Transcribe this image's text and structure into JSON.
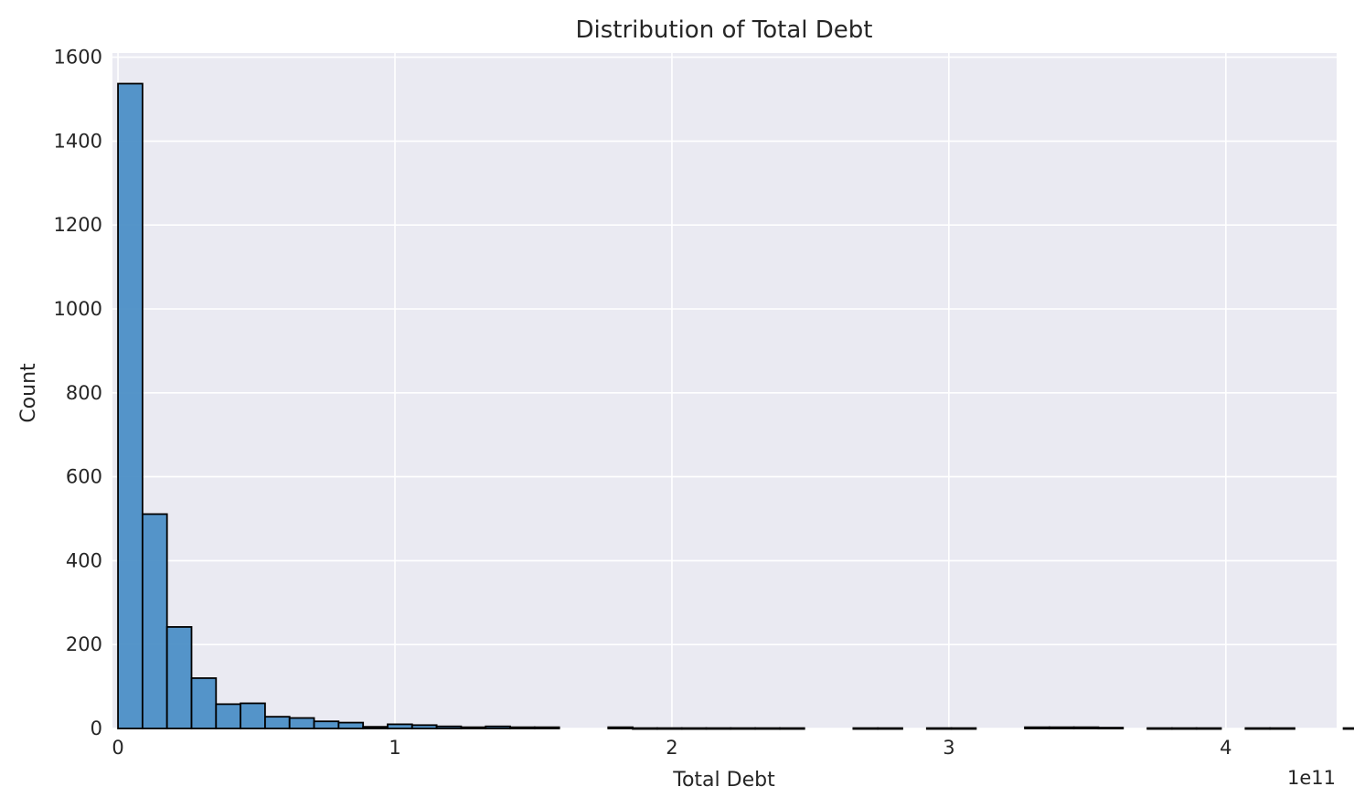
{
  "chart_data": {
    "type": "bar",
    "title": "Distribution of Total Debt",
    "xlabel": "Total Debt",
    "ylabel": "Count",
    "x_offset_text": "1e11",
    "x_scale": 100000000000,
    "xlim": [
      -0.02,
      4.4
    ],
    "ylim": [
      0,
      1610
    ],
    "x_ticks": [
      0,
      1,
      2,
      3,
      4
    ],
    "y_ticks": [
      0,
      200,
      400,
      600,
      800,
      1000,
      1200,
      1400,
      1600
    ],
    "bin_start": 0,
    "bin_width": 0.0885,
    "values": [
      1537,
      511,
      242,
      120,
      58,
      60,
      28,
      25,
      17,
      14,
      4,
      10,
      8,
      5,
      3,
      5,
      3,
      3,
      0,
      0,
      3,
      1,
      1,
      1,
      1,
      1,
      1,
      1,
      0,
      0,
      1,
      1,
      0,
      1,
      1,
      0,
      0,
      3,
      3,
      3,
      2,
      0,
      1,
      1,
      1,
      0,
      1,
      1,
      0,
      0,
      1
    ],
    "grid": true,
    "background": "#eaeaf2",
    "bar_color": "#4c8fc6",
    "edge_color": "#000000"
  }
}
